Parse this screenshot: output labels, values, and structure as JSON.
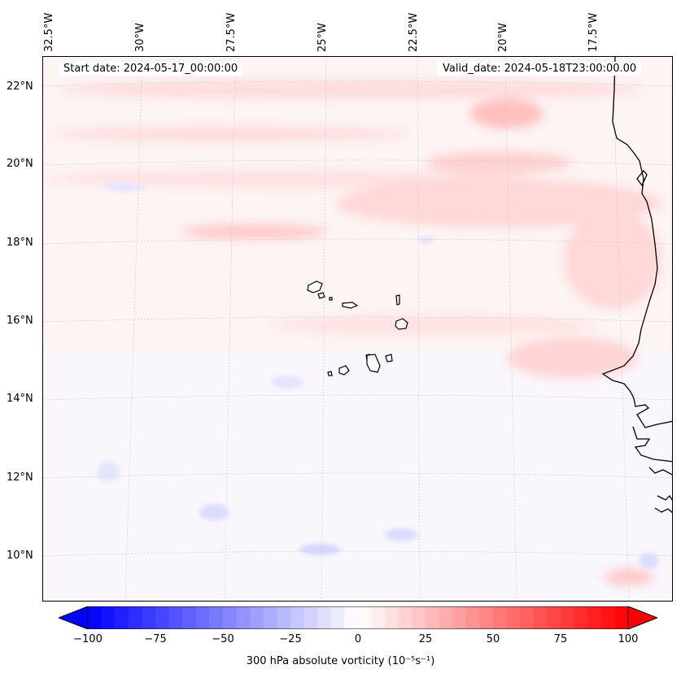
{
  "header": {
    "start_date": "Start date: 2024-05-17_00:00:00",
    "valid_date": "Valid_date: 2024-05-18T23:00:00.00"
  },
  "map": {
    "field": "300 hPa absolute vorticity",
    "region": "Cape Verde / West African coast",
    "lon_labels": [
      "32.5°W",
      "30°W",
      "27.5°W",
      "25°W",
      "22.5°W",
      "20°W",
      "17.5°W"
    ],
    "lat_labels": [
      "22°N",
      "20°N",
      "18°N",
      "16°N",
      "14°N",
      "12°N",
      "10°N"
    ],
    "colors": {
      "positive": "#ff0000",
      "negative": "#0000ff",
      "neutral": "#ffffff",
      "coastline": "#000000"
    }
  },
  "colorbar": {
    "ticks": [
      "−100",
      "−75",
      "−50",
      "−25",
      "0",
      "25",
      "50",
      "75",
      "100"
    ],
    "label": "300 hPa absolute vorticity (10⁻⁵s⁻¹)",
    "cmap": "bwr"
  }
}
